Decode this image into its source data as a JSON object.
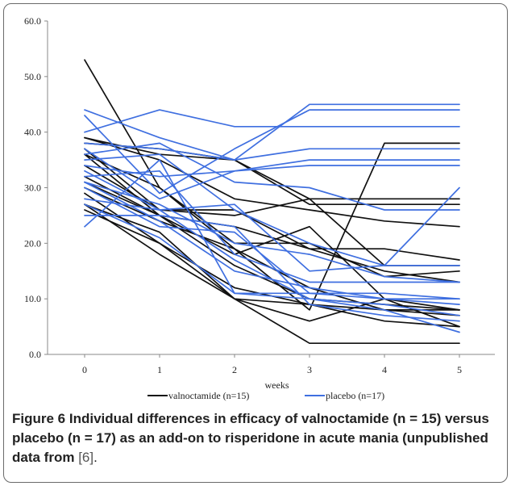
{
  "caption": {
    "label": "Figure 6",
    "text_bold": "Individual differences in efficacy of valnoctamide (n = 15) versus placebo (n = 17) as an add-on to risperidone in acute mania (unpublished data from",
    "ref": "[6]",
    "end": "."
  },
  "chart_data": {
    "type": "line",
    "xlabel": "weeks",
    "ylabel": "",
    "x": [
      0,
      1,
      2,
      3,
      4,
      5
    ],
    "ylim": [
      0,
      60
    ],
    "yticks": [
      "0.0",
      "10.0",
      "20.0",
      "30.0",
      "40.0",
      "50.0",
      "60.0"
    ],
    "xticks": [
      "0",
      "1",
      "2",
      "3",
      "4",
      "5"
    ],
    "grid": false,
    "legend_position": "bottom",
    "colors": {
      "valnoctamide": "#111111",
      "placebo": "#3f6fe0"
    },
    "groups": [
      {
        "name": "valnoctamide (n=15)",
        "color": "#111111",
        "lines": [
          [
            53,
            30,
            20,
            20,
            14,
            15
          ],
          [
            39,
            36,
            35,
            28,
            28,
            28
          ],
          [
            39,
            35,
            28,
            26,
            24,
            23
          ],
          [
            38,
            37,
            35,
            27,
            27,
            27
          ],
          [
            37,
            26,
            26,
            19,
            19,
            17
          ],
          [
            36,
            30,
            19,
            8,
            38,
            38
          ],
          [
            36,
            25,
            23,
            19,
            15,
            13
          ],
          [
            34,
            26,
            25,
            28,
            16,
            16
          ],
          [
            32,
            25,
            18,
            23,
            10,
            8
          ],
          [
            31,
            25,
            16,
            10,
            9,
            8
          ],
          [
            30,
            24,
            19,
            12,
            8,
            7
          ],
          [
            29,
            20,
            10,
            9,
            8,
            8
          ],
          [
            27,
            22,
            10,
            6,
            10,
            5
          ],
          [
            27,
            18,
            10,
            2,
            2,
            2
          ],
          [
            26,
            20,
            12,
            9,
            6,
            5
          ]
        ]
      },
      {
        "name": "placebo (n=17)",
        "color": "#3f6fe0",
        "lines": [
          [
            44,
            39,
            35,
            45,
            45,
            45
          ],
          [
            43,
            29,
            37,
            44,
            44,
            44
          ],
          [
            40,
            44,
            41,
            41,
            41,
            41
          ],
          [
            38,
            37,
            35,
            37,
            37,
            37
          ],
          [
            37,
            28,
            33,
            34,
            34,
            34
          ],
          [
            36,
            38,
            31,
            30,
            26,
            26
          ],
          [
            35,
            36,
            26,
            20,
            16,
            30
          ],
          [
            34,
            32,
            33,
            35,
            35,
            35
          ],
          [
            33,
            26,
            27,
            15,
            16,
            16
          ],
          [
            32,
            33,
            18,
            13,
            13,
            13
          ],
          [
            31,
            27,
            20,
            18,
            14,
            13
          ],
          [
            31,
            24,
            15,
            12,
            10,
            9
          ],
          [
            30,
            23,
            22,
            11,
            11,
            10
          ],
          [
            28,
            26,
            17,
            10,
            9,
            7
          ],
          [
            27,
            21,
            11,
            10,
            8,
            4
          ],
          [
            25,
            25,
            23,
            9,
            7,
            6
          ],
          [
            23,
            35,
            11,
            11,
            10,
            10
          ]
        ]
      }
    ]
  }
}
